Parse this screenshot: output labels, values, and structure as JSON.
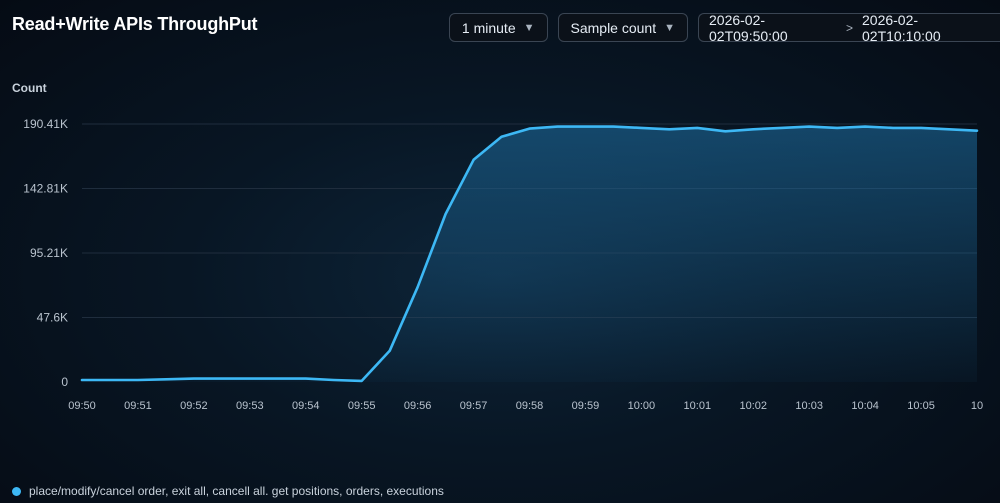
{
  "title": "Read+Write APIs ThroughPut",
  "controls": {
    "interval": "1 minute",
    "aggregation": "Sample count",
    "range_start": "2026-02-02T09:50:00",
    "range_separator": ">",
    "range_end": "2026-02-02T10:10:00"
  },
  "colors": {
    "line": "#3db8f5",
    "grid": "#1f2d3d",
    "tick": "#b9c3ce"
  },
  "chart_data": {
    "type": "area",
    "ylabel": "Count",
    "y_ticks": [
      {
        "value": 0,
        "label": "0"
      },
      {
        "value": 47600,
        "label": "47.6K"
      },
      {
        "value": 95210,
        "label": "95.21K"
      },
      {
        "value": 142810,
        "label": "142.81K"
      },
      {
        "value": 190410,
        "label": "190.41K"
      }
    ],
    "ylim": [
      0,
      190410
    ],
    "x_ticks": [
      "09:50",
      "09:51",
      "09:52",
      "09:53",
      "09:54",
      "09:55",
      "09:56",
      "09:57",
      "09:58",
      "09:59",
      "10:00",
      "10:01",
      "10:02",
      "10:03",
      "10:04",
      "10:05",
      "10"
    ],
    "xlim": [
      0,
      16
    ],
    "series": [
      {
        "name": "place/modify/cancel order, exit all, cancell all. get positions, orders, executions",
        "points": [
          [
            0,
            1500
          ],
          [
            0.5,
            1500
          ],
          [
            1,
            1500
          ],
          [
            1.5,
            2000
          ],
          [
            2,
            2500
          ],
          [
            2.5,
            2500
          ],
          [
            3,
            2500
          ],
          [
            3.5,
            2500
          ],
          [
            4,
            2500
          ],
          [
            4.5,
            1500
          ],
          [
            5,
            800
          ],
          [
            5.5,
            23000
          ],
          [
            6,
            70000
          ],
          [
            6.5,
            124000
          ],
          [
            7,
            164000
          ],
          [
            7.5,
            181000
          ],
          [
            8,
            187000
          ],
          [
            8.5,
            188500
          ],
          [
            9,
            188500
          ],
          [
            9.5,
            188500
          ],
          [
            10,
            187500
          ],
          [
            10.5,
            186500
          ],
          [
            11,
            187500
          ],
          [
            11.5,
            185000
          ],
          [
            12,
            186500
          ],
          [
            12.5,
            187500
          ],
          [
            13,
            188500
          ],
          [
            13.5,
            187500
          ],
          [
            14,
            188500
          ],
          [
            14.5,
            187500
          ],
          [
            15,
            187500
          ],
          [
            15.5,
            186500
          ],
          [
            16,
            185500
          ]
        ]
      }
    ]
  }
}
